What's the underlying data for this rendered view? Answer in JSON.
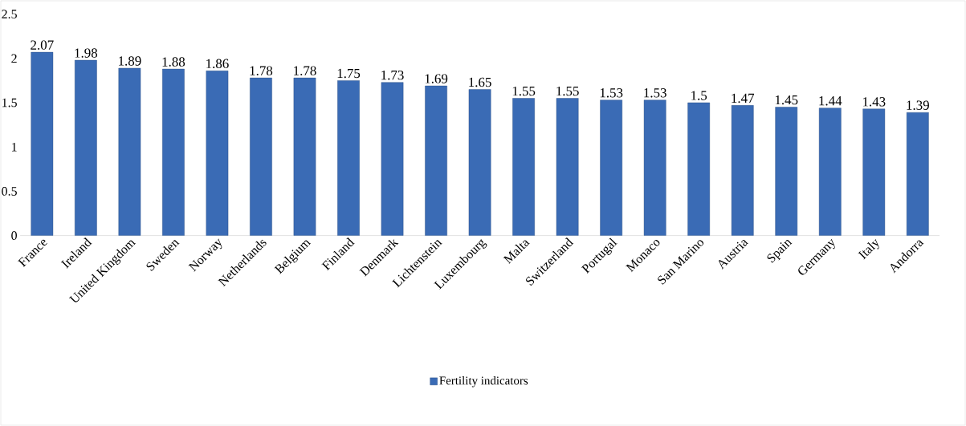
{
  "chart_data": {
    "type": "bar",
    "categories": [
      "France",
      "Ireland",
      "United Kingdom",
      "Sweden",
      "Norway",
      "Netherlands",
      "Belgium",
      "Finland",
      "Denmark",
      "Lichtenstein",
      "Luxembourg",
      "Malta",
      "Switzerland",
      "Portugal",
      "Monaco",
      "San Marino",
      "Austria",
      "Spain",
      "Germany",
      "Italy",
      "Andorra"
    ],
    "series": [
      {
        "name": "Fertility indicators",
        "color": "#3a6bb5",
        "values": [
          2.07,
          1.98,
          1.89,
          1.88,
          1.86,
          1.78,
          1.78,
          1.75,
          1.73,
          1.69,
          1.65,
          1.55,
          1.55,
          1.53,
          1.53,
          1.5,
          1.47,
          1.45,
          1.44,
          1.43,
          1.39
        ]
      }
    ],
    "ylim": [
      0,
      2.5
    ],
    "yticks": [
      0,
      0.5,
      1,
      1.5,
      2,
      2.5
    ],
    "grid": false,
    "legend": "bottom",
    "data_labels": true
  }
}
